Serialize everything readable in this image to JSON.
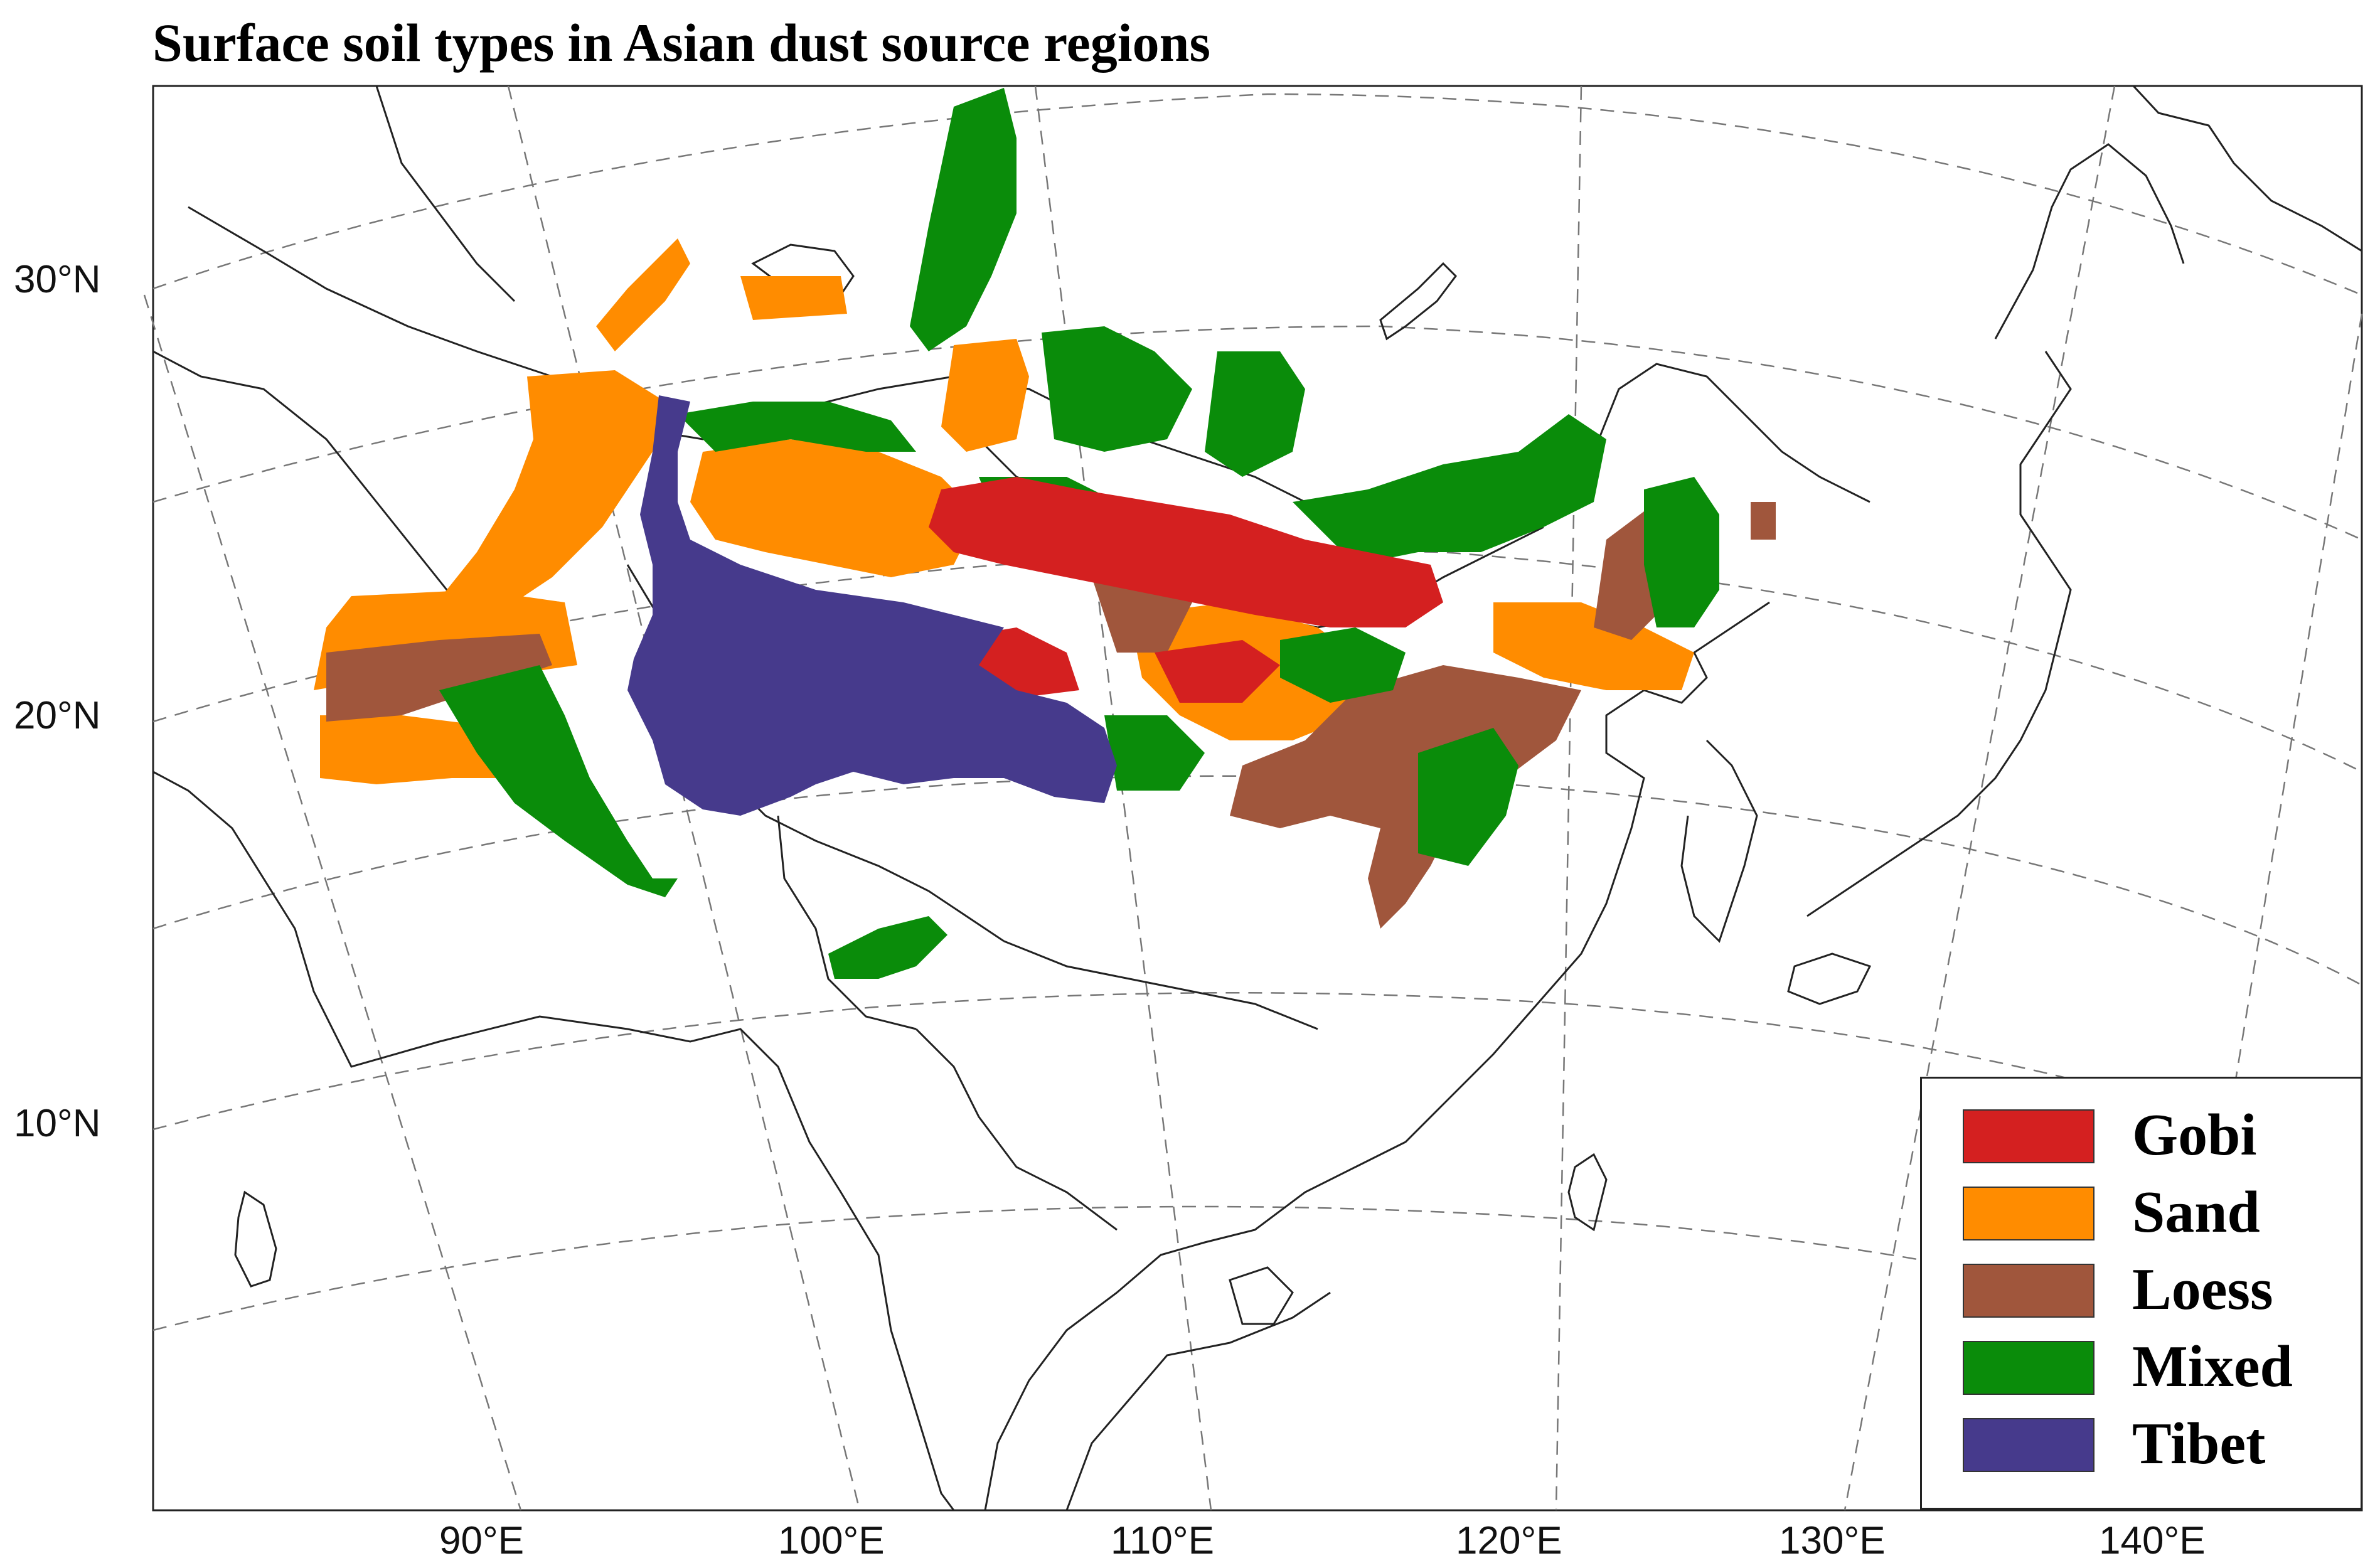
{
  "title": "Surface soil types in Asian dust source regions",
  "lat_labels": [
    "30°N",
    "20°N",
    "10°N"
  ],
  "lon_labels": [
    "90°E",
    "100°E",
    "110°E",
    "120°E",
    "130°E",
    "140°E"
  ],
  "legend": [
    {
      "label": "Gobi",
      "color": "#d42020"
    },
    {
      "label": "Sand",
      "color": "#ff8c00"
    },
    {
      "label": "Loess",
      "color": "#a0563c"
    },
    {
      "label": "Mixed",
      "color": "#0a8c0a"
    },
    {
      "label": "Tibet",
      "color": "#463a8c"
    }
  ]
}
